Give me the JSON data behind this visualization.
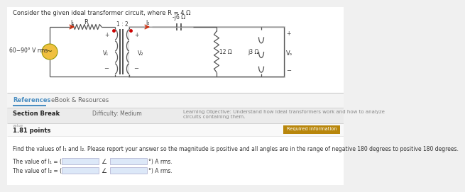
{
  "bg_color": "#f0f0f0",
  "white_panel_color": "#ffffff",
  "title_text": "Consider the given ideal transformer circuit, where R = 4 Ω",
  "source_label": "60−90° V rms",
  "ratio_label": "1 : 2",
  "R_label": "R",
  "z_jm6": "-j6 Ω",
  "z_12": "12 Ω",
  "z_j3": "j3 Ω",
  "V1_label": "V₁",
  "V2_label": "V₂",
  "Vo_label": "Vₒ",
  "I1_label": "I₁",
  "I2_label": "I₂",
  "tab1": "References",
  "tab2": "eBook & Resources",
  "section_break": "Section Break",
  "difficulty": "Difficulty: Medium",
  "learning_obj": "Learning Objective: Understand how ideal transformers work and how to analyze\ncircuits containing them.",
  "value_label": "value",
  "points_label": "1.81 points",
  "req_info_label": "Required information",
  "problem_text": "Find the values of I₁ and I₂. Please report your answer so the magnitude is positive and all angles are in the range of negative 180 degrees to positive 180 degrees.",
  "tab_color": "#4a8ec2",
  "section_row_bg": "#ebebeb",
  "wire_color": "#555555",
  "source_fill": "#f0c040",
  "source_edge": "#888800",
  "red_color": "#cc2200",
  "blue_input_bg": "#dce8f8",
  "req_btn_color": "#b8860b",
  "req_btn_text": "#ffffff",
  "dot_color": "#cc0000",
  "circuit_bg": "#f8f8f8"
}
